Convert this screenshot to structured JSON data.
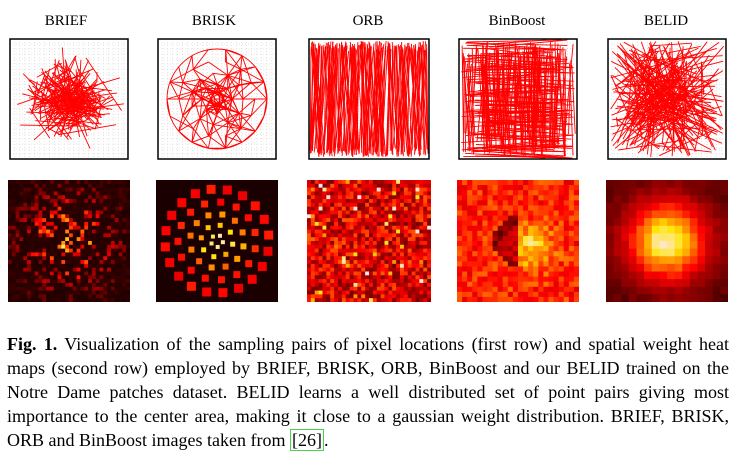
{
  "figure": {
    "methods": [
      "BRIEF",
      "BRISK",
      "ORB",
      "BinBoost",
      "BELID"
    ],
    "caption": {
      "fig_label": "Fig. 1.",
      "text": " Visualization of the sampling pairs of pixel locations (first row) and spatial weight heat maps (second row) employed by BRIEF, BRISK, ORB, BinBoost and our BELID trained on the Notre Dame patches dataset. BELID learns a well distributed set of point pairs giving most importance to the center area, making it close to a gaussian weight distribution. BRIEF, BRISK, ORB and BinBoost images taken from ",
      "citation": "[26]",
      "end": "."
    }
  },
  "colors": {
    "line": "#ff0000",
    "frame": "#000000",
    "grid": "#bbbbbb"
  }
}
